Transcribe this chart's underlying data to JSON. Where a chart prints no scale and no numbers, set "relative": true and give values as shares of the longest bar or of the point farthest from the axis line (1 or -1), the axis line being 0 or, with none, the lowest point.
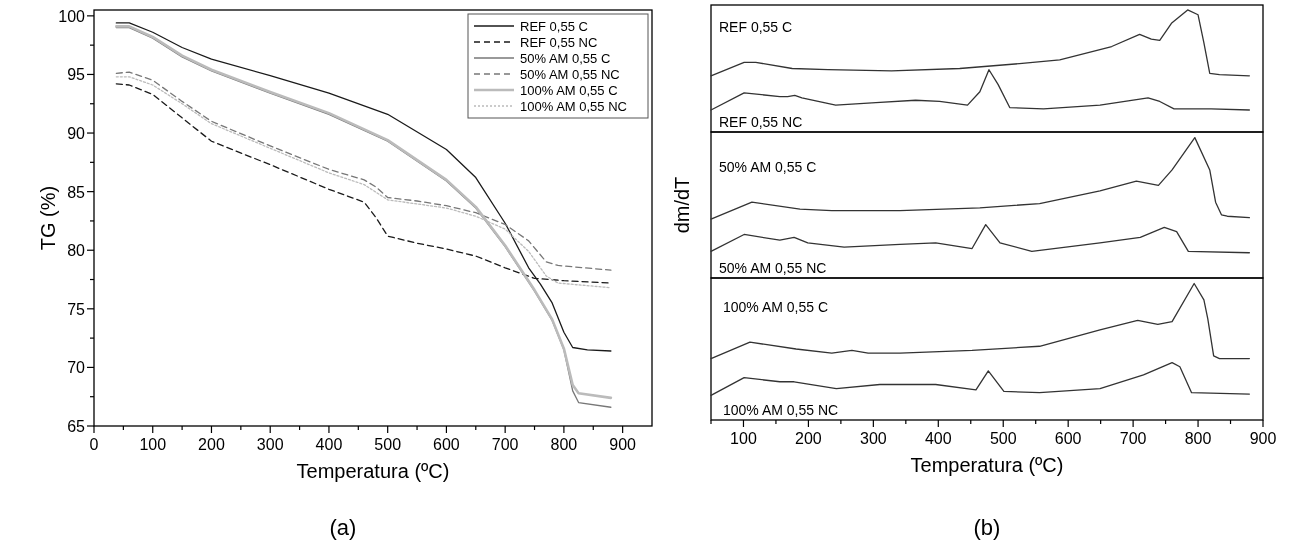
{
  "chart_data": [
    {
      "type": "line",
      "xlabel": "Temperatura (ºC)",
      "ylabel": "TG (%)",
      "xlim": [
        0,
        950
      ],
      "ylim": [
        65,
        100.5
      ],
      "xticks": [
        0,
        {
          "value": 50,
          "label": null
        },
        100,
        {
          "value": 150,
          "label": null
        },
        200,
        {
          "value": 250,
          "label": null
        },
        300,
        {
          "value": 350,
          "label": null
        },
        400,
        {
          "value": 450,
          "label": null
        },
        500,
        {
          "value": 550,
          "label": null
        },
        600,
        {
          "value": 650,
          "label": null
        },
        700,
        {
          "value": 750,
          "label": null
        },
        800,
        {
          "value": 850,
          "label": null
        },
        900
      ],
      "yticks": [
        65,
        {
          "value": 67.5,
          "label": null
        },
        70,
        {
          "value": 72.5,
          "label": null
        },
        75,
        {
          "value": 77.5,
          "label": null
        },
        80,
        {
          "value": 82.5,
          "label": null
        },
        85,
        {
          "value": 87.5,
          "label": null
        },
        90,
        {
          "value": 92.5,
          "label": null
        },
        95,
        {
          "value": 97.5,
          "label": null
        },
        100
      ],
      "legend": "top right",
      "annotations": [
        "(a)"
      ],
      "series": [
        {
          "name": "REF 0,55 C",
          "color": "#1a1a1a",
          "line_style": "solid",
          "x": [
            38,
            60,
            100,
            150,
            200,
            300,
            400,
            500,
            600,
            650,
            700,
            740,
            760,
            780,
            800,
            815,
            840,
            880
          ],
          "values": [
            99.4,
            99.4,
            98.6,
            97.3,
            96.3,
            94.9,
            93.4,
            91.6,
            88.6,
            86.2,
            82.3,
            78.5,
            77.1,
            75.5,
            73,
            71.7,
            71.5,
            71.4
          ]
        },
        {
          "name": "REF 0,55 NC",
          "color": "#1a1a1a",
          "line_style": "dashed",
          "x": [
            38,
            60,
            100,
            150,
            200,
            300,
            400,
            460,
            480,
            500,
            550,
            600,
            650,
            700,
            750,
            800,
            880
          ],
          "values": [
            94.2,
            94.1,
            93.3,
            91.3,
            89.3,
            87.3,
            85.2,
            84.1,
            82.8,
            81.2,
            80.6,
            80.1,
            79.5,
            78.5,
            77.6,
            77.4,
            77.2
          ]
        },
        {
          "name": "50% AM 0,55 C",
          "color": "#777777",
          "line_style": "solid",
          "x": [
            38,
            60,
            100,
            150,
            200,
            300,
            400,
            500,
            600,
            650,
            700,
            750,
            780,
            800,
            815,
            825,
            880
          ],
          "values": [
            99,
            99,
            98.1,
            96.5,
            95.3,
            93.4,
            91.6,
            89.3,
            85.9,
            83.6,
            80.3,
            76.5,
            74,
            71.5,
            68,
            67,
            66.6
          ]
        },
        {
          "name": "50% AM 0,55 NC",
          "color": "#777777",
          "line_style": "dashed",
          "x": [
            38,
            60,
            100,
            150,
            200,
            300,
            400,
            460,
            480,
            500,
            550,
            600,
            650,
            700,
            740,
            770,
            790,
            880
          ],
          "values": [
            95.1,
            95.2,
            94.5,
            92.7,
            91,
            88.9,
            86.9,
            86,
            85.4,
            84.5,
            84.2,
            83.8,
            83.2,
            82.2,
            80.8,
            79,
            78.7,
            78.3
          ]
        },
        {
          "name": "100% AM 0,55 C",
          "color": "#bbbbbb",
          "line_style": "solid",
          "x": [
            38,
            60,
            100,
            150,
            200,
            300,
            400,
            500,
            600,
            650,
            700,
            750,
            780,
            800,
            815,
            825,
            880
          ],
          "values": [
            99.1,
            99.1,
            98.2,
            96.6,
            95.4,
            93.5,
            91.7,
            89.4,
            86,
            83.7,
            80.4,
            76.6,
            74.1,
            71.6,
            68.5,
            67.8,
            67.4
          ]
        },
        {
          "name": "100% AM 0,55 NC",
          "color": "#bbbbbb",
          "line_style": "dotted",
          "x": [
            38,
            60,
            100,
            150,
            200,
            300,
            400,
            460,
            500,
            600,
            650,
            700,
            740,
            770,
            790,
            880
          ],
          "values": [
            94.8,
            94.8,
            94.1,
            92.5,
            90.8,
            88.7,
            86.6,
            85.6,
            84.3,
            83.6,
            82.9,
            81.8,
            79.9,
            77.8,
            77.2,
            76.8
          ]
        }
      ]
    },
    {
      "type": "line",
      "relative": true,
      "xlim": [
        50,
        900
      ],
      "tick_labels": false,
      "legend": false,
      "series": [
        {
          "name": "REF 0,55 C",
          "color": "#333333",
          "x": [
            50,
            101,
            119,
            175,
            230,
            328,
            433,
            525,
            587,
            667,
            710,
            728,
            741,
            759,
            784,
            800,
            809,
            818,
            833,
            879
          ],
          "values": [
            0.46,
            0.57,
            0.57,
            0.52,
            0.51,
            0.5,
            0.52,
            0.56,
            0.59,
            0.7,
            0.8,
            0.76,
            0.75,
            0.89,
            1,
            0.96,
            0.73,
            0.48,
            0.47,
            0.46
          ]
        },
        {
          "name": "REF 0,55 NC",
          "color": "#333333",
          "x": [
            50,
            101,
            156,
            168,
            179,
            190,
            242,
            304,
            365,
            402,
            445,
            464,
            478,
            492,
            510,
            562,
            649,
            723,
            741,
            763,
            820,
            879
          ],
          "values": [
            0.18,
            0.32,
            0.29,
            0.29,
            0.3,
            0.28,
            0.22,
            0.24,
            0.26,
            0.25,
            0.22,
            0.33,
            0.51,
            0.39,
            0.2,
            0.19,
            0.22,
            0.28,
            0.25,
            0.19,
            0.19,
            0.18
          ]
        }
      ]
    },
    {
      "type": "line",
      "relative": true,
      "xlim": [
        50,
        900
      ],
      "tick_labels": false,
      "legend": false,
      "ylabel": "dm/dT",
      "series": [
        {
          "name": "50% AM 0,55 C",
          "color": "#333333",
          "x": [
            50,
            113,
            187,
            236,
            341,
            464,
            556,
            649,
            705,
            739,
            760,
            795,
            818,
            827,
            836,
            845,
            879
          ],
          "values": [
            0.42,
            0.54,
            0.49,
            0.48,
            0.48,
            0.5,
            0.53,
            0.62,
            0.69,
            0.66,
            0.77,
            1,
            0.77,
            0.54,
            0.45,
            0.44,
            0.43
          ]
        },
        {
          "name": "50% AM 0,55 NC",
          "color": "#333333",
          "x": [
            50,
            101,
            156,
            178,
            199,
            255,
            341,
            396,
            452,
            473,
            495,
            544,
            649,
            711,
            748,
            767,
            785,
            879
          ],
          "values": [
            0.19,
            0.31,
            0.27,
            0.29,
            0.25,
            0.22,
            0.24,
            0.25,
            0.21,
            0.38,
            0.25,
            0.19,
            0.25,
            0.29,
            0.36,
            0.33,
            0.19,
            0.18
          ]
        }
      ]
    },
    {
      "type": "line",
      "relative": true,
      "xlim": [
        50,
        900
      ],
      "tick_labels": "x",
      "legend": false,
      "xlabel": "Temperatura (ºC)",
      "annotations": [
        "(b)"
      ],
      "xticks": [
        {
          "value": 50,
          "label": null
        },
        100,
        {
          "value": 150,
          "label": null
        },
        200,
        {
          "value": 250,
          "label": null
        },
        300,
        {
          "value": 350,
          "label": null
        },
        400,
        {
          "value": 450,
          "label": null
        },
        500,
        {
          "value": 550,
          "label": null
        },
        600,
        {
          "value": 650,
          "label": null
        },
        700,
        {
          "value": 750,
          "label": null
        },
        800,
        {
          "value": 850,
          "label": null
        },
        900
      ],
      "series": [
        {
          "name": "100% AM 0,55 C",
          "color": "#333333",
          "x": [
            50,
            110,
            181,
            236,
            267,
            292,
            341,
            452,
            556,
            649,
            707,
            738,
            760,
            794,
            809,
            815,
            824,
            833,
            879
          ],
          "values": [
            0.45,
            0.57,
            0.52,
            0.49,
            0.51,
            0.49,
            0.49,
            0.51,
            0.54,
            0.66,
            0.73,
            0.7,
            0.72,
            1,
            0.88,
            0.74,
            0.47,
            0.45,
            0.45
          ]
        },
        {
          "name": "100% AM 0,55 NC",
          "color": "#333333",
          "x": [
            50,
            101,
            156,
            178,
            243,
            310,
            396,
            458,
            477,
            501,
            556,
            649,
            716,
            760,
            772,
            790,
            879
          ],
          "values": [
            0.18,
            0.31,
            0.28,
            0.28,
            0.23,
            0.26,
            0.26,
            0.22,
            0.36,
            0.21,
            0.2,
            0.23,
            0.33,
            0.42,
            0.39,
            0.2,
            0.19
          ]
        }
      ]
    }
  ]
}
